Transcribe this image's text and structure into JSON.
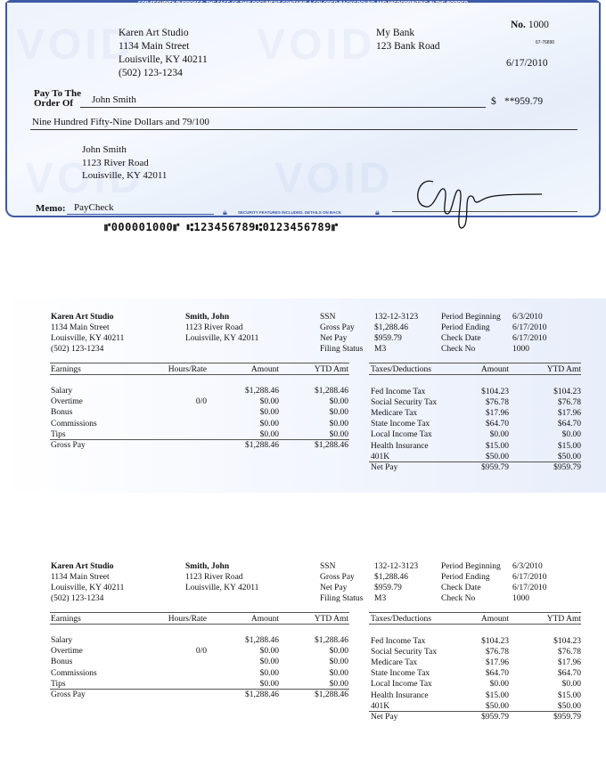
{
  "check": {
    "banner": "FOR SECURITY PURPOSES, THE FACE OF THIS DOCUMENT CONTAINS A COLORED BACKGROUND AND MICROPRINTING IN THE BORDER",
    "watermark": "VOID",
    "payer": {
      "name": "Karen Art Studio",
      "street": "1134 Main Street",
      "city": "Louisville, KY 40211",
      "phone": "(502) 123-1234"
    },
    "bank": {
      "name": "My Bank",
      "street": "123 Bank Road"
    },
    "number_label": "No.",
    "number": "1000",
    "routing_fraction": "67-76890",
    "date": "6/17/2010",
    "pay_to_label_1": "Pay To The",
    "pay_to_label_2": "Order Of",
    "payee": "John Smith",
    "currency": "$",
    "amount": "**959.79",
    "amount_words": "Nine Hundred Fifty-Nine Dollars and 79/100",
    "payee_address": {
      "name": "John Smith",
      "street": "1123 River Road",
      "city": "Louisville, KY 42011"
    },
    "memo_label": "Memo:",
    "memo": "PayCheck",
    "security_note": "SECURITY FEATURES INCLUDED. DETAILS ON BACK",
    "micr": "⑈000001000⑈ ⑆123456789⑆0123456789⑈",
    "colors": {
      "border": "#3c5aa6",
      "background": "#eef3fc"
    }
  },
  "stub": {
    "company": {
      "name": "Karen Art Studio",
      "street": "1134 Main Street",
      "city": "Louisville, KY 40211",
      "phone": "(502) 123-1234"
    },
    "employee": {
      "name": "Smith, John",
      "street": "1123 River Road",
      "city": "Louisville, KY 42011"
    },
    "info": [
      {
        "label": "SSN",
        "value": "132-12-3123"
      },
      {
        "label": "Gross Pay",
        "value": "$1,288.46"
      },
      {
        "label": "Net Pay",
        "value": "$959.79"
      },
      {
        "label": "Filing Status",
        "value": "M3"
      }
    ],
    "period": [
      {
        "label": "Period Beginning",
        "value": "6/3/2010"
      },
      {
        "label": "Period Ending",
        "value": "6/17/2010"
      },
      {
        "label": "Check Date",
        "value": "6/17/2010"
      },
      {
        "label": "Check No",
        "value": "1000"
      }
    ],
    "earnings": {
      "headers": [
        "Earnings",
        "Hours/Rate",
        "Amount",
        "YTD Amt"
      ],
      "rows": [
        [
          "Salary",
          "",
          "$1,288.46",
          "$1,288.46"
        ],
        [
          "Overtime",
          "0/0",
          "$0.00",
          "$0.00"
        ],
        [
          "Bonus",
          "",
          "$0.00",
          "$0.00"
        ],
        [
          "Commissions",
          "",
          "$0.00",
          "$0.00"
        ],
        [
          "Tips",
          "",
          "$0.00",
          "$0.00"
        ]
      ],
      "total": [
        "Gross Pay",
        "",
        "$1,288.46",
        "$1,288.46"
      ]
    },
    "deductions": {
      "headers": [
        "Taxes/Deductions",
        "Amount",
        "YTD Amt"
      ],
      "rows": [
        [
          "Fed Income Tax",
          "$104.23",
          "$104.23"
        ],
        [
          "Social Security Tax",
          "$76.78",
          "$76.78"
        ],
        [
          "Medicare Tax",
          "$17.96",
          "$17.96"
        ],
        [
          "State Income Tax",
          "$64.70",
          "$64.70"
        ],
        [
          "Local Income Tax",
          "$0.00",
          "$0.00"
        ],
        [
          "Health Insurance",
          "$15.00",
          "$15.00"
        ],
        [
          "401K",
          "$50.00",
          "$50.00"
        ]
      ],
      "total": [
        "Net Pay",
        "$959.79",
        "$959.79"
      ]
    }
  }
}
